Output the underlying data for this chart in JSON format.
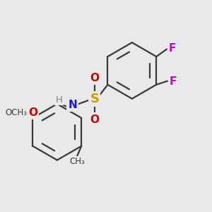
{
  "background_color": "#e9e9e9",
  "fig_size": [
    3.0,
    3.0
  ],
  "dpi": 100,
  "colors": {
    "bond": "#3a3a3a",
    "S": "#c8a000",
    "N": "#1a1acc",
    "O": "#cc0000",
    "F": "#cc00cc",
    "H": "#808080",
    "C": "#3a3a3a"
  }
}
